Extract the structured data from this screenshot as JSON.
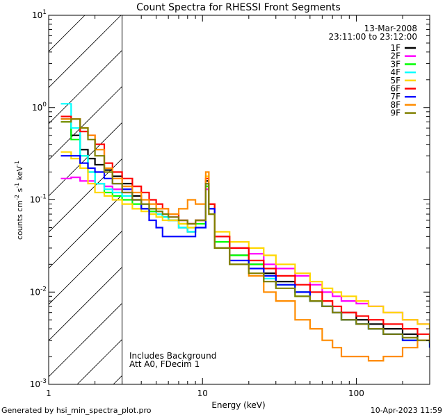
{
  "chart_data": {
    "type": "line",
    "title": "Count Spectra for RHESSI Front Segments",
    "xlabel": "Energy (keV)",
    "ylabel_base": "counts cm",
    "ylabel_exp1": "-2",
    "ylabel_mid": " s",
    "ylabel_exp2": "-1",
    "ylabel_end": " keV",
    "ylabel_exp3": "-1",
    "xscale": "log",
    "yscale": "log",
    "xlim": [
      1,
      300
    ],
    "ylim": [
      0.001,
      10
    ],
    "x_ticks": [
      {
        "value": 1,
        "label": "1"
      },
      {
        "value": 10,
        "label": "10"
      },
      {
        "value": 100,
        "label": "100"
      }
    ],
    "y_ticks": [
      {
        "value": 0.001,
        "base": "10",
        "exp": "-3"
      },
      {
        "value": 0.01,
        "base": "10",
        "exp": "-2"
      },
      {
        "value": 0.1,
        "base": "10",
        "exp": "-1"
      },
      {
        "value": 1,
        "base": "10",
        "exp": "0"
      },
      {
        "value": 10,
        "base": "10",
        "exp": "1"
      }
    ],
    "date": "13-Mar-2008",
    "time_range": "23:11:00 to 23:12:00",
    "hatched_region_kev": [
      1,
      3
    ],
    "annotations": [
      "Includes Background",
      "Att A0, FDecim 1"
    ],
    "series": [
      {
        "name": "1F",
        "color": "#000000",
        "x": [
          1.2,
          1.4,
          1.6,
          1.8,
          2.0,
          2.3,
          2.6,
          3.0,
          3.5,
          4.0,
          4.5,
          5.0,
          5.5,
          6.0,
          7.0,
          8.0,
          9.0,
          10.5,
          11.0,
          12,
          15,
          20,
          25,
          30,
          40,
          50,
          60,
          70,
          80,
          100,
          120,
          150,
          200,
          250,
          300
        ],
        "values": [
          0.75,
          0.5,
          0.35,
          0.28,
          0.24,
          0.21,
          0.18,
          0.15,
          0.11,
          0.08,
          0.075,
          0.07,
          0.065,
          0.06,
          0.05,
          0.045,
          0.06,
          0.16,
          0.09,
          0.04,
          0.025,
          0.02,
          0.016,
          0.013,
          0.01,
          0.008,
          0.007,
          0.006,
          0.006,
          0.005,
          0.0045,
          0.004,
          0.0035,
          0.003,
          0.0028
        ]
      },
      {
        "name": "2F",
        "color": "#ff00ff",
        "x": [
          1.2,
          1.4,
          1.6,
          1.8,
          2.0,
          2.3,
          2.6,
          3.0,
          3.5,
          4.0,
          4.5,
          5.0,
          5.5,
          6.0,
          7.0,
          8.0,
          9.0,
          10.5,
          11.0,
          12,
          15,
          20,
          25,
          30,
          40,
          50,
          60,
          70,
          80,
          100,
          120,
          150,
          200,
          250,
          300
        ],
        "values": [
          0.17,
          0.175,
          0.16,
          0.16,
          0.15,
          0.14,
          0.13,
          0.12,
          0.1,
          0.09,
          0.08,
          0.075,
          0.07,
          0.065,
          0.06,
          0.055,
          0.06,
          0.13,
          0.08,
          0.04,
          0.03,
          0.026,
          0.02,
          0.018,
          0.015,
          0.012,
          0.01,
          0.009,
          0.008,
          0.0075,
          0.007,
          0.006,
          0.005,
          0.0045,
          0.004
        ]
      },
      {
        "name": "3F",
        "color": "#00ff00",
        "x": [
          1.2,
          1.4,
          1.6,
          1.8,
          2.0,
          2.3,
          2.6,
          3.0,
          3.5,
          4.0,
          4.5,
          5.0,
          5.5,
          6.0,
          7.0,
          8.0,
          9.0,
          10.5,
          11.0,
          12,
          15,
          20,
          25,
          30,
          40,
          50,
          60,
          70,
          80,
          100,
          120,
          150,
          200,
          250,
          300
        ],
        "values": [
          0.7,
          0.45,
          0.3,
          0.2,
          0.15,
          0.12,
          0.11,
          0.1,
          0.09,
          0.08,
          0.075,
          0.07,
          0.065,
          0.06,
          0.055,
          0.05,
          0.055,
          0.14,
          0.08,
          0.035,
          0.025,
          0.02,
          0.015,
          0.012,
          0.009,
          0.008,
          0.007,
          0.006,
          0.005,
          0.0045,
          0.004,
          0.0035,
          0.003,
          0.003,
          0.0025
        ]
      },
      {
        "name": "4F",
        "color": "#00ffff",
        "x": [
          1.2,
          1.4,
          1.6,
          1.8,
          2.0,
          2.3,
          2.6,
          3.0,
          3.5,
          4.0,
          4.5,
          5.0,
          5.5,
          6.0,
          7.0,
          8.0,
          9.0,
          10.5,
          11.0,
          12,
          15,
          20,
          25,
          30,
          40,
          50,
          60,
          70,
          80,
          100,
          120,
          150,
          200,
          250,
          300
        ],
        "values": [
          1.1,
          0.6,
          0.3,
          0.2,
          0.15,
          0.13,
          0.12,
          0.11,
          0.1,
          0.09,
          0.08,
          0.07,
          0.065,
          0.06,
          0.05,
          0.045,
          0.05,
          0.15,
          0.08,
          0.03,
          0.02,
          0.018,
          0.014,
          0.012,
          0.01,
          0.008,
          0.007,
          0.006,
          0.005,
          0.0045,
          0.004,
          0.0035,
          0.003,
          0.003,
          0.0025
        ]
      },
      {
        "name": "5F",
        "color": "#ffd700",
        "x": [
          1.2,
          1.4,
          1.6,
          1.8,
          2.0,
          2.3,
          2.6,
          3.0,
          3.5,
          4.0,
          4.5,
          5.0,
          5.5,
          6.0,
          7.0,
          8.0,
          9.0,
          10.5,
          11.0,
          12,
          15,
          20,
          25,
          30,
          40,
          50,
          60,
          70,
          80,
          100,
          120,
          150,
          200,
          250,
          300
        ],
        "values": [
          0.33,
          0.28,
          0.22,
          0.15,
          0.12,
          0.11,
          0.1,
          0.09,
          0.08,
          0.075,
          0.07,
          0.065,
          0.06,
          0.06,
          0.055,
          0.05,
          0.06,
          0.18,
          0.09,
          0.045,
          0.035,
          0.03,
          0.025,
          0.02,
          0.016,
          0.013,
          0.011,
          0.01,
          0.009,
          0.008,
          0.007,
          0.006,
          0.005,
          0.0045,
          0.004
        ]
      },
      {
        "name": "6F",
        "color": "#ff0000",
        "x": [
          1.2,
          1.4,
          1.6,
          1.8,
          2.0,
          2.3,
          2.6,
          3.0,
          3.5,
          4.0,
          4.5,
          5.0,
          5.5,
          6.0,
          7.0,
          8.0,
          9.0,
          10.5,
          11.0,
          12,
          15,
          20,
          25,
          30,
          40,
          50,
          60,
          70,
          80,
          100,
          120,
          150,
          200,
          250,
          300
        ],
        "values": [
          0.8,
          0.75,
          0.55,
          0.5,
          0.4,
          0.25,
          0.2,
          0.17,
          0.14,
          0.12,
          0.1,
          0.09,
          0.08,
          0.07,
          0.06,
          0.055,
          0.06,
          0.17,
          0.09,
          0.04,
          0.03,
          0.022,
          0.018,
          0.015,
          0.012,
          0.01,
          0.008,
          0.007,
          0.006,
          0.0055,
          0.005,
          0.0045,
          0.004,
          0.0035,
          0.003
        ]
      },
      {
        "name": "7F",
        "color": "#0000ff",
        "x": [
          1.2,
          1.4,
          1.6,
          1.8,
          2.0,
          2.3,
          2.6,
          3.0,
          3.5,
          4.0,
          4.5,
          5.0,
          5.5,
          6.0,
          7.0,
          8.0,
          9.0,
          10.5,
          11.0,
          12,
          15,
          20,
          25,
          30,
          40,
          50,
          60,
          70,
          80,
          100,
          120,
          150,
          200,
          250,
          300
        ],
        "values": [
          0.3,
          0.3,
          0.25,
          0.22,
          0.2,
          0.17,
          0.15,
          0.13,
          0.1,
          0.08,
          0.06,
          0.05,
          0.04,
          0.04,
          0.04,
          0.04,
          0.05,
          0.15,
          0.08,
          0.03,
          0.022,
          0.018,
          0.015,
          0.012,
          0.01,
          0.008,
          0.007,
          0.006,
          0.005,
          0.0045,
          0.004,
          0.0035,
          0.003,
          0.003,
          0.0025
        ]
      },
      {
        "name": "8F",
        "color": "#ff8c00",
        "x": [
          1.2,
          1.4,
          1.6,
          1.8,
          2.0,
          2.3,
          2.6,
          3.0,
          3.5,
          4.0,
          4.5,
          5.0,
          5.5,
          6.0,
          7.0,
          8.0,
          9.0,
          10.5,
          11.0,
          12,
          15,
          20,
          25,
          30,
          40,
          50,
          60,
          70,
          80,
          100,
          120,
          150,
          200,
          250,
          300
        ],
        "values": [
          0.75,
          0.75,
          0.6,
          0.5,
          0.35,
          0.22,
          0.17,
          0.14,
          0.12,
          0.1,
          0.09,
          0.08,
          0.08,
          0.07,
          0.08,
          0.1,
          0.09,
          0.2,
          0.07,
          0.03,
          0.02,
          0.015,
          0.01,
          0.008,
          0.005,
          0.004,
          0.003,
          0.0025,
          0.002,
          0.002,
          0.0018,
          0.002,
          0.0025,
          0.003,
          0.0035
        ]
      },
      {
        "name": "9F",
        "color": "#808000",
        "x": [
          1.2,
          1.4,
          1.6,
          1.8,
          2.0,
          2.3,
          2.6,
          3.0,
          3.5,
          4.0,
          4.5,
          5.0,
          5.5,
          6.0,
          7.0,
          8.0,
          9.0,
          10.5,
          11.0,
          12,
          15,
          20,
          25,
          30,
          40,
          50,
          60,
          70,
          80,
          100,
          120,
          150,
          200,
          250,
          300
        ],
        "values": [
          0.7,
          0.75,
          0.6,
          0.45,
          0.3,
          0.2,
          0.15,
          0.12,
          0.1,
          0.09,
          0.08,
          0.075,
          0.07,
          0.065,
          0.06,
          0.055,
          0.06,
          0.15,
          0.07,
          0.03,
          0.02,
          0.016,
          0.013,
          0.011,
          0.009,
          0.008,
          0.007,
          0.006,
          0.005,
          0.0045,
          0.004,
          0.0035,
          0.0032,
          0.003,
          0.0028
        ]
      }
    ]
  },
  "footer": {
    "generated_by": "Generated by hsi_min_spectra_plot.pro",
    "timestamp": "10-Apr-2023 11:59"
  }
}
